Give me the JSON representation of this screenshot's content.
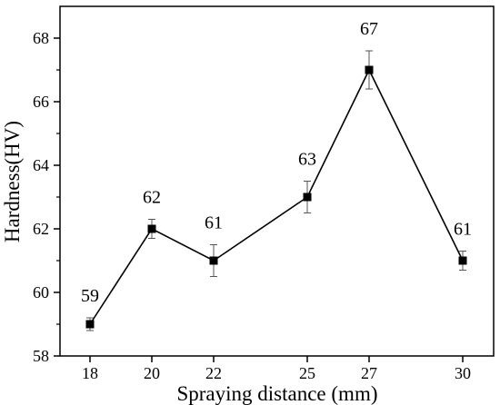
{
  "chart_data": {
    "type": "line",
    "title": "",
    "xlabel": "Spraying distance (mm)",
    "ylabel": "Hardness(HV)",
    "x": [
      18,
      20,
      22,
      25,
      27,
      30
    ],
    "x_tick_labels": [
      "18",
      "20",
      "22",
      "25",
      "27",
      "30"
    ],
    "ylim": [
      58,
      69
    ],
    "y_ticks": [
      58,
      60,
      62,
      64,
      66,
      68
    ],
    "y_tick_labels": [
      "58",
      "60",
      "62",
      "64",
      "66",
      "68"
    ],
    "series": [
      {
        "values": [
          59,
          62,
          61,
          63,
          67,
          61
        ],
        "error": [
          0.2,
          0.3,
          0.5,
          0.5,
          0.6,
          0.3
        ],
        "data_labels": [
          "59",
          "62",
          "61",
          "63",
          "67",
          "61"
        ],
        "color": "#000000",
        "marker": "square"
      }
    ],
    "grid": false,
    "legend": "none"
  }
}
